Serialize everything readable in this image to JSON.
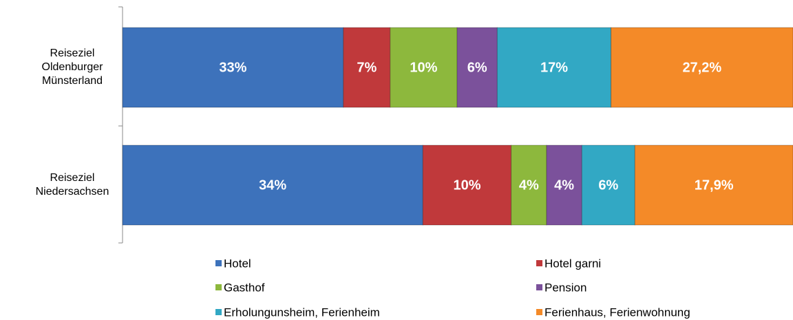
{
  "chart_data": {
    "type": "bar",
    "orientation": "horizontal",
    "stack": "percent",
    "categories": [
      "Reiseziel Oldenburger Münsterland",
      "Reiseziel Niedersachsen"
    ],
    "series": [
      {
        "name": "Hotel",
        "color": "#3d72bb",
        "values": [
          33,
          34
        ],
        "value_labels": [
          "33%",
          "34%"
        ]
      },
      {
        "name": "Hotel garni",
        "color": "#c0393b",
        "values": [
          7,
          10
        ],
        "value_labels": [
          "7%",
          "10%"
        ]
      },
      {
        "name": "Gasthof",
        "color": "#8db83d",
        "values": [
          10,
          4
        ],
        "value_labels": [
          "10%",
          "4%"
        ]
      },
      {
        "name": "Pension",
        "color": "#7b519b",
        "values": [
          6,
          4
        ],
        "value_labels": [
          "6%",
          "4%"
        ]
      },
      {
        "name": "Erholungunsheim, Ferienheim",
        "color": "#32a8c4",
        "values": [
          17,
          6
        ],
        "value_labels": [
          "17%",
          "6%"
        ]
      },
      {
        "name": "Ferienhaus, Ferienwohnung",
        "color": "#f48a28",
        "values": [
          27.2,
          17.9
        ],
        "value_labels": [
          "27,2%",
          "17,9%"
        ]
      }
    ]
  }
}
